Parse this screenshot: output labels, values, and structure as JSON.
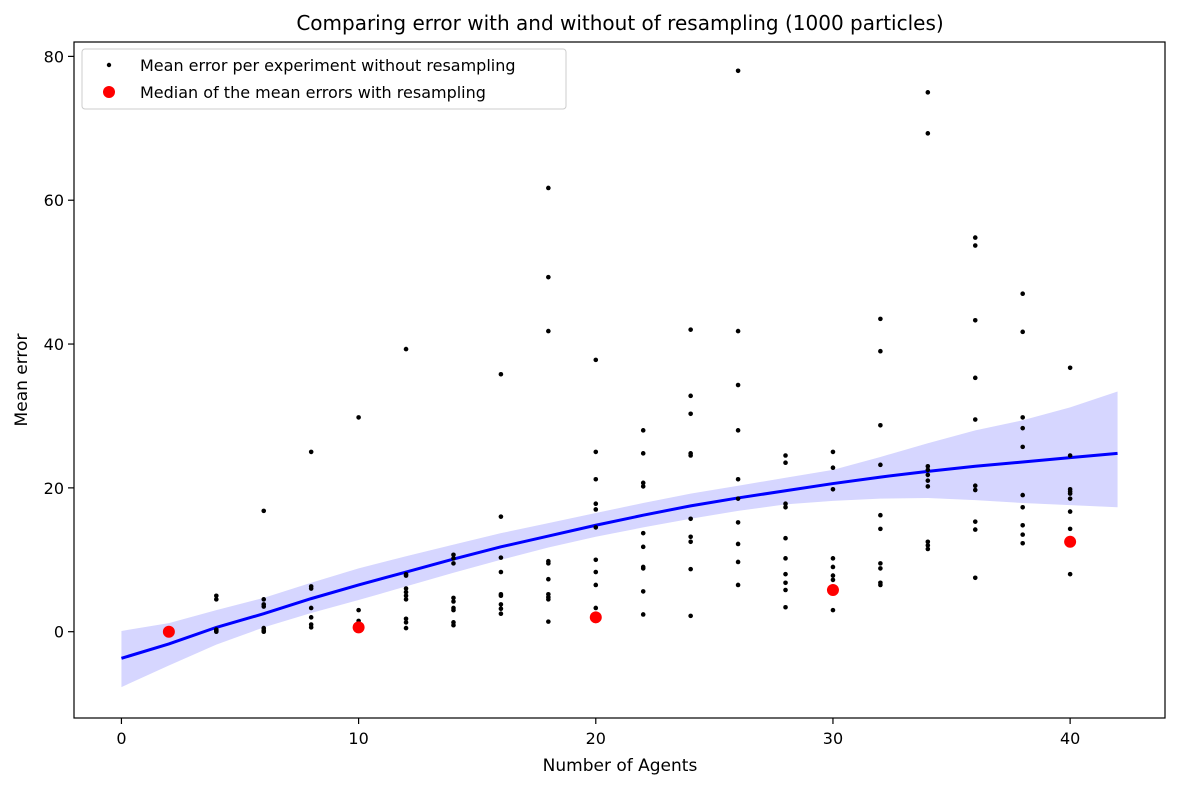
{
  "chart_data": {
    "type": "scatter",
    "title": "Comparing error with and without of resampling (1000 particles)",
    "xlabel": "Number of Agents",
    "ylabel": "Mean error",
    "xlim": [
      -2,
      44
    ],
    "ylim": [
      -12,
      82
    ],
    "x_ticks": [
      0,
      10,
      20,
      30,
      40
    ],
    "y_ticks": [
      0,
      20,
      40,
      60,
      80
    ],
    "grid": false,
    "legend_position": "top-left",
    "series": [
      {
        "name": "Mean error per experiment without resampling",
        "kind": "points",
        "color": "#000000",
        "points": [
          [
            4,
            4.5
          ],
          [
            4,
            5
          ],
          [
            4,
            0.3
          ],
          [
            4,
            0.1
          ],
          [
            4,
            0
          ],
          [
            4,
            0.2
          ],
          [
            6,
            16.8
          ],
          [
            6,
            4.5
          ],
          [
            6,
            3.8
          ],
          [
            6,
            3.5
          ],
          [
            6,
            0.5
          ],
          [
            6,
            0.2
          ],
          [
            6,
            0
          ],
          [
            8,
            25
          ],
          [
            8,
            6.3
          ],
          [
            8,
            6
          ],
          [
            8,
            3.3
          ],
          [
            8,
            2
          ],
          [
            8,
            1
          ],
          [
            8,
            0.6
          ],
          [
            10,
            29.8
          ],
          [
            10,
            3
          ],
          [
            10,
            1.5
          ],
          [
            10,
            1.2
          ],
          [
            10,
            0.8
          ],
          [
            12,
            39.3
          ],
          [
            12,
            8
          ],
          [
            12,
            7.8
          ],
          [
            12,
            6
          ],
          [
            12,
            5.5
          ],
          [
            12,
            5
          ],
          [
            12,
            4.5
          ],
          [
            12,
            1.8
          ],
          [
            12,
            1.3
          ],
          [
            12,
            0.5
          ],
          [
            14,
            10.7
          ],
          [
            14,
            10.2
          ],
          [
            14,
            9.5
          ],
          [
            14,
            4.7
          ],
          [
            14,
            4.2
          ],
          [
            14,
            3.3
          ],
          [
            14,
            3
          ],
          [
            14,
            1.3
          ],
          [
            14,
            0.9
          ],
          [
            16,
            35.8
          ],
          [
            16,
            16
          ],
          [
            16,
            10.3
          ],
          [
            16,
            8.3
          ],
          [
            16,
            5.2
          ],
          [
            16,
            5
          ],
          [
            16,
            3.8
          ],
          [
            16,
            3.2
          ],
          [
            16,
            2.5
          ],
          [
            18,
            61.7
          ],
          [
            18,
            49.3
          ],
          [
            18,
            41.8
          ],
          [
            18,
            9.8
          ],
          [
            18,
            9.5
          ],
          [
            18,
            7.3
          ],
          [
            18,
            5.2
          ],
          [
            18,
            4.8
          ],
          [
            18,
            4.5
          ],
          [
            18,
            1.4
          ],
          [
            20,
            37.8
          ],
          [
            20,
            25
          ],
          [
            20,
            21.2
          ],
          [
            20,
            17.8
          ],
          [
            20,
            17
          ],
          [
            20,
            14.5
          ],
          [
            20,
            10
          ],
          [
            20,
            8.3
          ],
          [
            20,
            6.5
          ],
          [
            20,
            3.3
          ],
          [
            22,
            28
          ],
          [
            22,
            24.8
          ],
          [
            22,
            20.7
          ],
          [
            22,
            20.2
          ],
          [
            22,
            13.7
          ],
          [
            22,
            11.8
          ],
          [
            22,
            9
          ],
          [
            22,
            8.8
          ],
          [
            22,
            5.6
          ],
          [
            22,
            2.4
          ],
          [
            24,
            42
          ],
          [
            24,
            32.8
          ],
          [
            24,
            30.3
          ],
          [
            24,
            24.8
          ],
          [
            24,
            24.5
          ],
          [
            24,
            15.7
          ],
          [
            24,
            13.2
          ],
          [
            24,
            12.5
          ],
          [
            24,
            8.7
          ],
          [
            24,
            2.2
          ],
          [
            26,
            78
          ],
          [
            26,
            41.8
          ],
          [
            26,
            34.3
          ],
          [
            26,
            28
          ],
          [
            26,
            21.2
          ],
          [
            26,
            18.5
          ],
          [
            26,
            15.2
          ],
          [
            26,
            12.2
          ],
          [
            26,
            9.7
          ],
          [
            26,
            6.5
          ],
          [
            28,
            24.5
          ],
          [
            28,
            23.5
          ],
          [
            28,
            17.8
          ],
          [
            28,
            17.3
          ],
          [
            28,
            13
          ],
          [
            28,
            10.2
          ],
          [
            28,
            8
          ],
          [
            28,
            6.8
          ],
          [
            28,
            5.8
          ],
          [
            28,
            3.4
          ],
          [
            30,
            25
          ],
          [
            30,
            22.8
          ],
          [
            30,
            19.8
          ],
          [
            30,
            10.2
          ],
          [
            30,
            9
          ],
          [
            30,
            7.8
          ],
          [
            30,
            7.2
          ],
          [
            30,
            3
          ],
          [
            32,
            43.5
          ],
          [
            32,
            39
          ],
          [
            32,
            28.7
          ],
          [
            32,
            23.2
          ],
          [
            32,
            16.2
          ],
          [
            32,
            14.3
          ],
          [
            32,
            9.5
          ],
          [
            32,
            8.8
          ],
          [
            32,
            6.8
          ],
          [
            32,
            6.5
          ],
          [
            34,
            75
          ],
          [
            34,
            69.3
          ],
          [
            34,
            23
          ],
          [
            34,
            22.5
          ],
          [
            34,
            21.8
          ],
          [
            34,
            21
          ],
          [
            34,
            20.2
          ],
          [
            34,
            12.5
          ],
          [
            34,
            12
          ],
          [
            34,
            11.5
          ],
          [
            36,
            54.8
          ],
          [
            36,
            53.7
          ],
          [
            36,
            43.3
          ],
          [
            36,
            35.3
          ],
          [
            36,
            29.5
          ],
          [
            36,
            20.3
          ],
          [
            36,
            19.7
          ],
          [
            36,
            15.3
          ],
          [
            36,
            14.2
          ],
          [
            36,
            7.5
          ],
          [
            38,
            47
          ],
          [
            38,
            41.7
          ],
          [
            38,
            29.8
          ],
          [
            38,
            28.3
          ],
          [
            38,
            25.7
          ],
          [
            38,
            19
          ],
          [
            38,
            17.3
          ],
          [
            38,
            14.8
          ],
          [
            38,
            13.5
          ],
          [
            38,
            12.3
          ],
          [
            40,
            36.7
          ],
          [
            40,
            24.5
          ],
          [
            40,
            19.8
          ],
          [
            40,
            19.5
          ],
          [
            40,
            19.2
          ],
          [
            40,
            18.5
          ],
          [
            40,
            16.7
          ],
          [
            40,
            14.3
          ],
          [
            40,
            8
          ]
        ]
      },
      {
        "name": "Median of the mean errors with resampling",
        "kind": "points",
        "color": "#ff0000",
        "points": [
          [
            2,
            0
          ],
          [
            10,
            0.6
          ],
          [
            20,
            2
          ],
          [
            30,
            5.8
          ],
          [
            40,
            12.5
          ]
        ]
      },
      {
        "kind": "line",
        "color": "#0000ff",
        "x": [
          0,
          2,
          4,
          6,
          8,
          10,
          12,
          14,
          16,
          18,
          20,
          22,
          24,
          26,
          28,
          30,
          32,
          34,
          36,
          38,
          40,
          42
        ],
        "y": [
          -3.7,
          -1.7,
          0.6,
          2.5,
          4.6,
          6.5,
          8.3,
          10.1,
          11.8,
          13.3,
          14.8,
          16.2,
          17.5,
          18.6,
          19.6,
          20.6,
          21.5,
          22.3,
          23.0,
          23.6,
          24.2,
          24.8
        ],
        "ci_lower": [
          -7.7,
          -4.7,
          -1.8,
          0.6,
          2.6,
          4.4,
          6.3,
          8.2,
          10.0,
          11.7,
          13.2,
          14.5,
          15.7,
          16.8,
          17.7,
          18.2,
          18.5,
          18.6,
          18.3,
          17.9,
          17.6,
          17.3
        ],
        "ci_upper": [
          0.1,
          1.2,
          3.0,
          4.7,
          6.8,
          8.8,
          10.5,
          12.1,
          13.7,
          15.1,
          16.5,
          17.9,
          19.2,
          20.3,
          21.4,
          22.5,
          24.3,
          26.2,
          28.0,
          29.4,
          31.2,
          33.4
        ],
        "ci_color": "#d6d6ff"
      }
    ]
  }
}
